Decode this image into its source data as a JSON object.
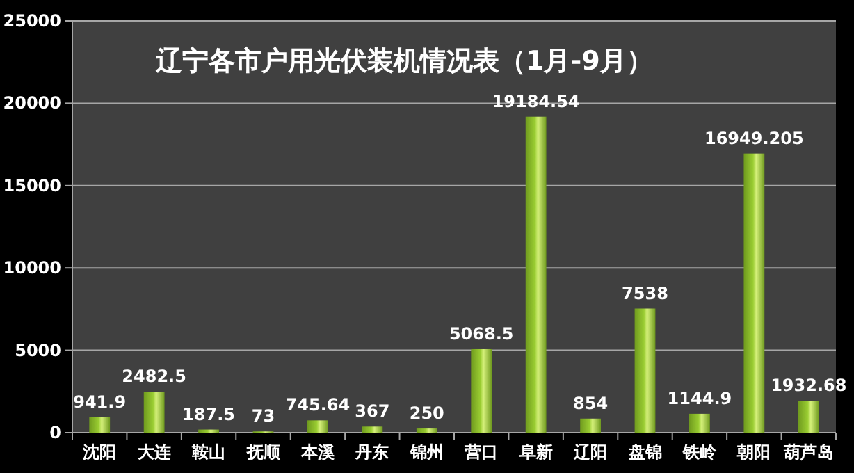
{
  "chart_data": {
    "type": "bar",
    "title": "辽宁各市户用光伏装机情况表（1月-9月）",
    "categories": [
      "沈阳",
      "大连",
      "鞍山",
      "抚顺",
      "本溪",
      "丹东",
      "锦州",
      "营口",
      "阜新",
      "辽阳",
      "盘锦",
      "铁岭",
      "朝阳",
      "葫芦岛"
    ],
    "values": [
      941.9,
      2482.5,
      187.5,
      73,
      745.64,
      367,
      250,
      5068.5,
      19184.54,
      854,
      7538,
      1144.9,
      16949.205,
      1932.68
    ],
    "color": "#9acd32",
    "ylim": [
      0,
      25000
    ],
    "yticks": [
      0,
      5000,
      10000,
      15000,
      20000,
      25000
    ],
    "grid": "y",
    "data_labels": true
  }
}
